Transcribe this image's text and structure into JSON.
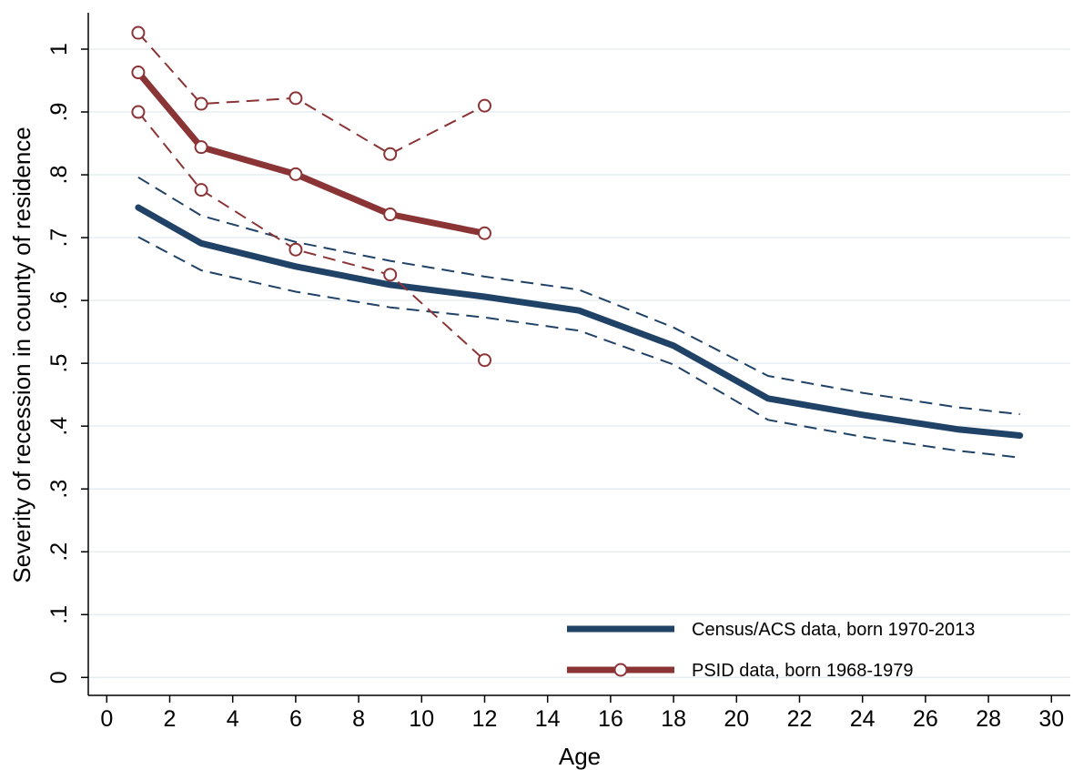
{
  "chart_data": {
    "type": "line",
    "xlabel": "Age",
    "ylabel": "Severity of recession in county of residence",
    "xlim": [
      0,
      30
    ],
    "ylim": [
      0,
      1
    ],
    "x_ticks": [
      0,
      2,
      4,
      6,
      8,
      10,
      12,
      14,
      16,
      18,
      20,
      22,
      24,
      26,
      28,
      30
    ],
    "x_tick_labels": [
      "0",
      "2",
      "4",
      "6",
      "8",
      "10",
      "12",
      "14",
      "16",
      "18",
      "20",
      "22",
      "24",
      "26",
      "28",
      "30"
    ],
    "y_ticks": [
      0,
      0.1,
      0.2,
      0.3,
      0.4,
      0.5,
      0.6,
      0.7,
      0.8,
      0.9,
      1
    ],
    "y_tick_labels": [
      "0",
      ".1",
      ".2",
      ".3",
      ".4",
      ".5",
      ".6",
      ".7",
      ".8",
      ".9",
      "1"
    ],
    "grid": true,
    "legend_position": "bottom-right",
    "series": [
      {
        "name": "Census/ACS data, born 1970-2013",
        "color": "#1f4266",
        "style": "solid-thick",
        "x": [
          1,
          3,
          6,
          9,
          12,
          15,
          18,
          21,
          24,
          27,
          29
        ],
        "y": [
          0.748,
          0.691,
          0.654,
          0.625,
          0.606,
          0.584,
          0.528,
          0.444,
          0.418,
          0.395,
          0.385
        ]
      },
      {
        "color": "#1f4266",
        "style": "dashed-thin",
        "x": [
          1,
          3,
          6,
          9,
          12,
          15,
          18,
          21,
          24,
          27,
          29
        ],
        "y": [
          0.796,
          0.735,
          0.693,
          0.663,
          0.638,
          0.617,
          0.557,
          0.48,
          0.453,
          0.43,
          0.419
        ]
      },
      {
        "color": "#1f4266",
        "style": "dashed-thin",
        "x": [
          1,
          3,
          6,
          9,
          12,
          15,
          18,
          21,
          24,
          27,
          29
        ],
        "y": [
          0.701,
          0.648,
          0.614,
          0.589,
          0.573,
          0.552,
          0.498,
          0.41,
          0.383,
          0.361,
          0.35
        ]
      },
      {
        "name": "PSID data, born 1968-1979",
        "color": "#8b3435",
        "style": "solid-thick-markers",
        "x": [
          1,
          3,
          6,
          9,
          12
        ],
        "y": [
          0.963,
          0.844,
          0.801,
          0.737,
          0.707
        ]
      },
      {
        "color": "#8b3435",
        "style": "dashed-thin-markers",
        "x": [
          1,
          3,
          6,
          9,
          12
        ],
        "y": [
          1.026,
          0.913,
          0.922,
          0.833,
          0.91
        ]
      },
      {
        "color": "#8b3435",
        "style": "dashed-thin-markers",
        "x": [
          1,
          3,
          6,
          9,
          12
        ],
        "y": [
          0.9,
          0.776,
          0.681,
          0.641,
          0.505
        ]
      }
    ]
  }
}
